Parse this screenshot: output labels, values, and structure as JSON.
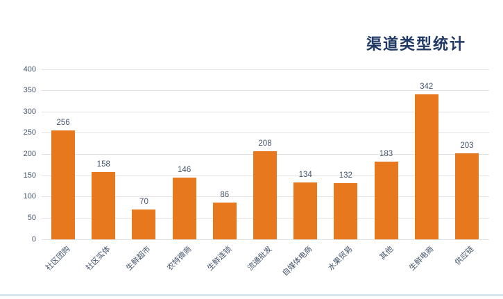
{
  "chart_data": {
    "type": "bar",
    "title": "渠道类型统计",
    "categories": [
      "社区团购",
      "社区实体",
      "生鲜超市",
      "农特微商",
      "生鲜连锁",
      "流通批发",
      "自媒体电商",
      "水果贸易",
      "其他",
      "生鲜电商",
      "供应链"
    ],
    "values": [
      256,
      158,
      70,
      146,
      86,
      208,
      134,
      132,
      183,
      342,
      203
    ],
    "xlabel": "",
    "ylabel": "",
    "ylim": [
      0,
      400
    ],
    "yticks": [
      0,
      50,
      100,
      150,
      200,
      250,
      300,
      350,
      400
    ],
    "grid": true,
    "legend": false,
    "value_labels": true
  },
  "colors": {
    "bar": "#e8781e",
    "title_text": "#1f3864",
    "axis_text": "#44546a",
    "value_label_text": "#44546a",
    "gridline": "#e2e2e2",
    "bottom_border": "#d7e7ec",
    "background": "#ffffff"
  }
}
